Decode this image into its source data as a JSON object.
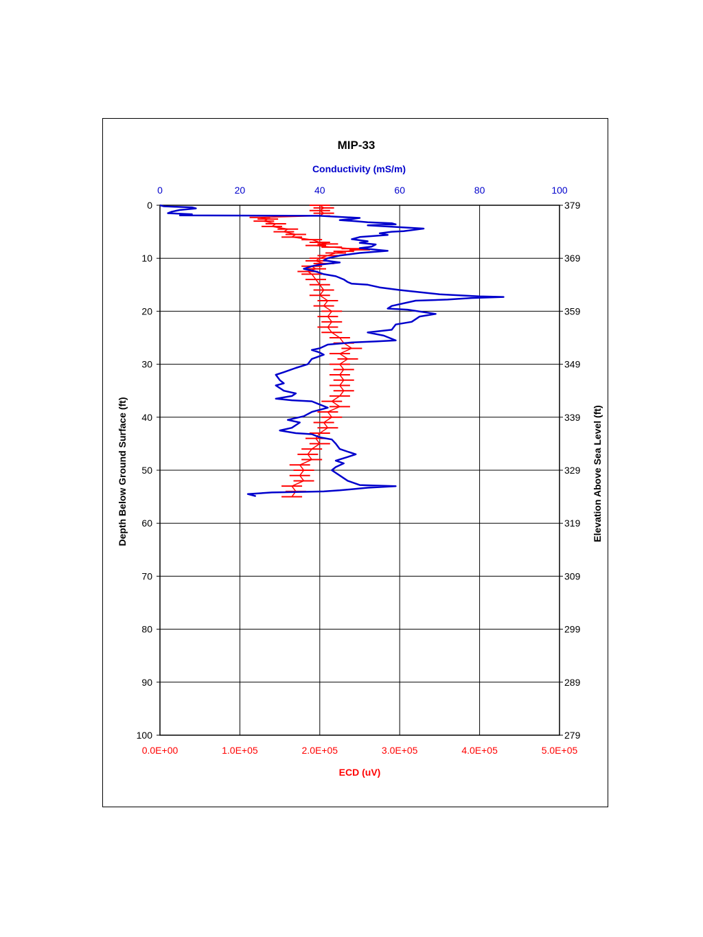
{
  "chart_data": {
    "type": "line",
    "title": "MIP-33",
    "top_axis": {
      "label": "Conductivity (mS/m)",
      "range": [
        0,
        100
      ],
      "ticks": [
        "0",
        "20",
        "40",
        "60",
        "80",
        "100"
      ],
      "color": "#0000cc"
    },
    "bottom_axis": {
      "label": "ECD (uV)",
      "range": [
        0,
        500000
      ],
      "ticks": [
        "0.0E+00",
        "1.0E+05",
        "2.0E+05",
        "3.0E+05",
        "4.0E+05",
        "5.0E+05"
      ],
      "color": "#ff0000"
    },
    "left_axis": {
      "label": "Depth Below Ground Surface (ft)",
      "range": [
        0,
        100
      ],
      "inverted": true,
      "ticks": [
        "0",
        "10",
        "20",
        "30",
        "40",
        "50",
        "60",
        "70",
        "80",
        "90",
        "100"
      ]
    },
    "right_axis": {
      "label": "Elevation Above Sea Level (ft)",
      "ticks": [
        "379",
        "369",
        "359",
        "349",
        "339",
        "329",
        "319",
        "309",
        "299",
        "289",
        "279"
      ]
    },
    "grid": true,
    "series": [
      {
        "axis": "top",
        "color": "#0000cc",
        "points": [
          [
            0,
            0
          ],
          [
            1,
            0.2
          ],
          [
            4,
            0.3
          ],
          [
            8,
            0.4
          ],
          [
            9,
            0.6
          ],
          [
            5,
            0.9
          ],
          [
            3,
            1.2
          ],
          [
            2,
            1.5
          ],
          [
            8,
            1.7
          ],
          [
            5,
            1.9
          ],
          [
            40,
            2.0
          ],
          [
            45,
            2.2
          ],
          [
            50,
            2.4
          ],
          [
            48,
            2.6
          ],
          [
            45,
            2.8
          ],
          [
            49,
            3.0
          ],
          [
            52,
            3.2
          ],
          [
            58,
            3.4
          ],
          [
            59,
            3.6
          ],
          [
            52,
            3.8
          ],
          [
            66,
            4.4
          ],
          [
            61,
            4.9
          ],
          [
            58,
            5.0
          ],
          [
            55,
            5.3
          ],
          [
            57,
            5.6
          ],
          [
            50,
            6.0
          ],
          [
            48,
            6.4
          ],
          [
            52,
            6.8
          ],
          [
            50,
            7.1
          ],
          [
            54,
            7.4
          ],
          [
            53,
            7.8
          ],
          [
            50,
            8.1
          ],
          [
            54,
            8.4
          ],
          [
            57,
            8.6
          ],
          [
            50,
            9.0
          ],
          [
            45,
            9.5
          ],
          [
            42,
            10.0
          ],
          [
            41,
            10.4
          ],
          [
            45,
            10.8
          ],
          [
            40,
            11.2
          ],
          [
            38,
            11.5
          ],
          [
            36,
            12.0
          ],
          [
            39,
            12.5
          ],
          [
            41,
            13.0
          ],
          [
            44,
            13.4
          ],
          [
            46,
            14.0
          ],
          [
            47,
            14.5
          ],
          [
            48,
            14.8
          ],
          [
            52,
            15.0
          ],
          [
            55,
            15.5
          ],
          [
            60,
            16.0
          ],
          [
            65,
            16.4
          ],
          [
            70,
            16.8
          ],
          [
            80,
            17.2
          ],
          [
            86,
            17.3
          ],
          [
            78,
            17.5
          ],
          [
            72,
            17.8
          ],
          [
            64,
            18.0
          ],
          [
            58,
            19.0
          ],
          [
            57,
            19.5
          ],
          [
            62,
            19.7
          ],
          [
            69,
            20.5
          ],
          [
            65,
            21.0
          ],
          [
            63,
            22.0
          ],
          [
            59,
            22.5
          ],
          [
            58,
            23.5
          ],
          [
            52,
            24.0
          ],
          [
            56,
            24.6
          ],
          [
            59,
            25.5
          ],
          [
            54,
            25.7
          ],
          [
            48,
            25.9
          ],
          [
            42,
            26.3
          ],
          [
            40,
            27.0
          ],
          [
            38,
            27.3
          ],
          [
            40,
            27.8
          ],
          [
            41,
            28.2
          ],
          [
            38,
            29.0
          ],
          [
            37,
            30.0
          ],
          [
            34,
            30.7
          ],
          [
            31,
            31.5
          ],
          [
            29,
            32.0
          ],
          [
            30,
            33.0
          ],
          [
            31,
            33.6
          ],
          [
            29,
            34.0
          ],
          [
            31,
            35.0
          ],
          [
            34,
            35.5
          ],
          [
            33,
            36.0
          ],
          [
            29,
            36.5
          ],
          [
            33,
            36.8
          ],
          [
            38,
            37.0
          ],
          [
            40,
            37.6
          ],
          [
            42,
            38.2
          ],
          [
            38,
            39.0
          ],
          [
            36,
            39.8
          ],
          [
            32,
            40.5
          ],
          [
            35,
            41.0
          ],
          [
            33,
            42.0
          ],
          [
            30,
            42.5
          ],
          [
            34,
            43.0
          ],
          [
            38,
            43.2
          ],
          [
            40,
            43.8
          ],
          [
            43,
            44.2
          ],
          [
            44,
            45.0
          ],
          [
            45,
            46.0
          ],
          [
            47,
            46.5
          ],
          [
            49,
            47.0
          ],
          [
            47,
            47.5
          ],
          [
            44,
            48.2
          ],
          [
            46,
            48.7
          ],
          [
            44,
            49.4
          ],
          [
            43,
            50.0
          ],
          [
            45,
            51.0
          ],
          [
            47,
            52.0
          ],
          [
            50,
            52.8
          ],
          [
            59,
            53.0
          ],
          [
            52,
            53.3
          ],
          [
            45,
            53.8
          ],
          [
            41,
            54.0
          ],
          [
            34,
            54.1
          ],
          [
            28,
            54.2
          ],
          [
            22,
            54.5
          ],
          [
            24,
            54.9
          ]
        ]
      },
      {
        "axis": "bottom",
        "color": "#ff0000",
        "points": [
          [
            200000,
            0
          ],
          [
            205000,
            0.5
          ],
          [
            200000,
            1.0
          ],
          [
            205000,
            1.5
          ],
          [
            200000,
            2.0
          ],
          [
            125000,
            2.3
          ],
          [
            135000,
            2.6
          ],
          [
            130000,
            3.0
          ],
          [
            145000,
            3.5
          ],
          [
            140000,
            4.0
          ],
          [
            160000,
            4.5
          ],
          [
            155000,
            5.0
          ],
          [
            170000,
            5.5
          ],
          [
            165000,
            6.0
          ],
          [
            190000,
            6.5
          ],
          [
            200000,
            7.0
          ],
          [
            210000,
            7.3
          ],
          [
            195000,
            7.6
          ],
          [
            215000,
            7.9
          ],
          [
            240000,
            8.2
          ],
          [
            250000,
            8.4
          ],
          [
            230000,
            8.7
          ],
          [
            220000,
            9.0
          ],
          [
            210000,
            9.5
          ],
          [
            200000,
            10.0
          ],
          [
            195000,
            10.5
          ],
          [
            205000,
            11.0
          ],
          [
            190000,
            11.5
          ],
          [
            195000,
            12.0
          ],
          [
            185000,
            12.5
          ],
          [
            190000,
            13.0
          ],
          [
            195000,
            14.0
          ],
          [
            200000,
            15.0
          ],
          [
            205000,
            16.0
          ],
          [
            200000,
            17.0
          ],
          [
            210000,
            18.0
          ],
          [
            205000,
            19.0
          ],
          [
            215000,
            20.0
          ],
          [
            210000,
            21.0
          ],
          [
            215000,
            22.0
          ],
          [
            210000,
            23.0
          ],
          [
            215000,
            24.0
          ],
          [
            225000,
            25.0
          ],
          [
            230000,
            26.0
          ],
          [
            240000,
            27.0
          ],
          [
            225000,
            28.0
          ],
          [
            235000,
            29.0
          ],
          [
            225000,
            30.0
          ],
          [
            230000,
            31.0
          ],
          [
            225000,
            32.0
          ],
          [
            230000,
            33.0
          ],
          [
            225000,
            34.0
          ],
          [
            230000,
            35.0
          ],
          [
            225000,
            36.0
          ],
          [
            215000,
            37.0
          ],
          [
            225000,
            38.0
          ],
          [
            210000,
            39.0
          ],
          [
            215000,
            40.0
          ],
          [
            205000,
            41.0
          ],
          [
            210000,
            42.0
          ],
          [
            200000,
            43.0
          ],
          [
            195000,
            44.0
          ],
          [
            200000,
            45.0
          ],
          [
            190000,
            46.0
          ],
          [
            185000,
            47.0
          ],
          [
            190000,
            48.0
          ],
          [
            175000,
            49.0
          ],
          [
            180000,
            50.0
          ],
          [
            175000,
            51.0
          ],
          [
            180000,
            52.0
          ],
          [
            165000,
            53.0
          ],
          [
            170000,
            54.0
          ],
          [
            165000,
            55.0
          ]
        ]
      }
    ]
  }
}
